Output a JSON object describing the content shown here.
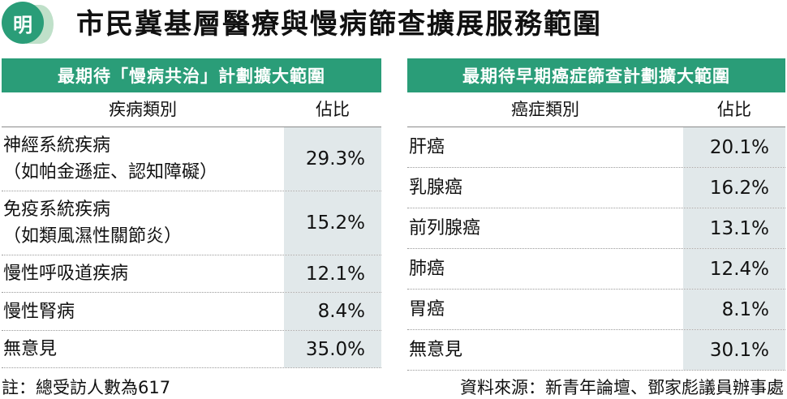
{
  "header": {
    "logo_char": "明",
    "title": "市民冀基層醫療與慢病篩查擴展服務範圍"
  },
  "colors": {
    "accent": "#2a9d78",
    "value_bg": "#e1e8ea",
    "logo_light": "#bfe0c9"
  },
  "chart_data": [
    {
      "type": "table",
      "title": "最期待「慢病共治」計劃擴大範圍",
      "columns": [
        "疾病類別",
        "佔比"
      ],
      "rows": [
        {
          "category": [
            "神經系統疾病",
            "（如帕金遜症、認知障礙）"
          ],
          "value": "29.3%"
        },
        {
          "category": [
            "免疫系統疾病",
            "（如類風濕性關節炎）"
          ],
          "value": "15.2%"
        },
        {
          "category": [
            "慢性呼吸道疾病"
          ],
          "value": "12.1%"
        },
        {
          "category": [
            "慢性腎病"
          ],
          "value": "8.4%"
        },
        {
          "category": [
            "無意見"
          ],
          "value": "35.0%"
        }
      ]
    },
    {
      "type": "table",
      "title": "最期待早期癌症篩查計劃擴大範圍",
      "columns": [
        "癌症類別",
        "佔比"
      ],
      "rows": [
        {
          "category": [
            "肝癌"
          ],
          "value": "20.1%"
        },
        {
          "category": [
            "乳腺癌"
          ],
          "value": "16.2%"
        },
        {
          "category": [
            "前列腺癌"
          ],
          "value": "13.1%"
        },
        {
          "category": [
            "肺癌"
          ],
          "value": "12.4%"
        },
        {
          "category": [
            "胃癌"
          ],
          "value": "8.1%"
        },
        {
          "category": [
            "無意見"
          ],
          "value": "30.1%"
        }
      ]
    }
  ],
  "footer": {
    "note": "註：總受訪人數為617",
    "source": "資料來源：新青年論壇、鄧家彪議員辦事處"
  }
}
